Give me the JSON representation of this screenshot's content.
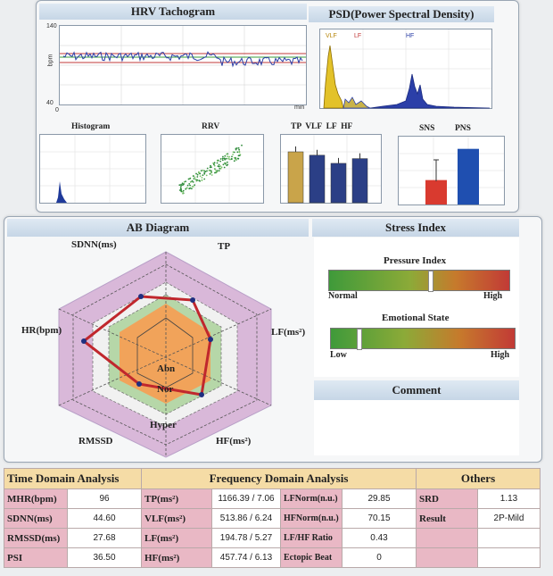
{
  "tachogram": {
    "title": "HRV Tachogram",
    "y_max": "140",
    "y_min": "40",
    "x_start": "0",
    "x_unit": "min",
    "y_unit": "bpm"
  },
  "psd": {
    "title": "PSD(Power Spectral Density)",
    "vlf": "VLF",
    "lf": "LF",
    "hf": "HF"
  },
  "mini": {
    "histogram": "Histogram",
    "rrv": "RRV",
    "bands": "TP  VLF  LF  HF",
    "sns": "SNS",
    "pns": "PNS"
  },
  "bands_chart": {
    "categories": [
      "TP",
      "VLF",
      "LF",
      "HF"
    ],
    "values": [
      0.75,
      0.7,
      0.58,
      0.65
    ],
    "colors": [
      "#c9a44a",
      "#2b3f86",
      "#2b3f86",
      "#2b3f86"
    ]
  },
  "sns_chart": {
    "categories": [
      "SNS",
      "PNS"
    ],
    "values": [
      0.36,
      0.82
    ],
    "colors": [
      "#d93a2f",
      "#1f4fb0"
    ]
  },
  "ab": {
    "title": "AB Diagram",
    "sdnn": "SDNN(ms)",
    "tp": "TP",
    "hr": "HR(bpm)",
    "lf": "LF(ms²)",
    "rmssd": "RMSSD",
    "hf": "HF(ms²)",
    "abn": "Abn",
    "nor": "Nor",
    "hyper": "Hyper"
  },
  "stress": {
    "title": "Stress Index",
    "pressure": "Pressure Index",
    "normal": "Normal",
    "high1": "High",
    "pressure_level": 0.55,
    "emotional": "Emotional State",
    "low": "Low",
    "high2": "High",
    "emotional_level": 0.14,
    "comment": "Comment"
  },
  "table": {
    "h_time": "Time Domain Analysis",
    "h_freq": "Frequency Domain Analysis",
    "h_others": "Others",
    "rows": [
      {
        "k1": "MHR(bpm)",
        "v1": "96",
        "k2": "TP(ms²)",
        "v2": "1166.39 / 7.06",
        "k3": "LFNorm(n.u.)",
        "v3": "29.85",
        "k4": "SRD",
        "v4": "1.13"
      },
      {
        "k1": "SDNN(ms)",
        "v1": "44.60",
        "k2": "VLF(ms²)",
        "v2": "513.86 / 6.24",
        "k3": "HFNorm(n.u.)",
        "v3": "70.15",
        "k4": "Result",
        "v4": "2P-Mild"
      },
      {
        "k1": "RMSSD(ms)",
        "v1": "27.68",
        "k2": "LF(ms²)",
        "v2": "194.78 / 5.27",
        "k3": "LF/HF Ratio",
        "v3": "0.43",
        "k4": "",
        "v4": ""
      },
      {
        "k1": "PSI",
        "v1": "36.50",
        "k2": "HF(ms²)",
        "v2": "457.74 / 6.13",
        "k3": "Ectopic Beat",
        "v3": "0",
        "k4": "",
        "v4": ""
      }
    ]
  }
}
